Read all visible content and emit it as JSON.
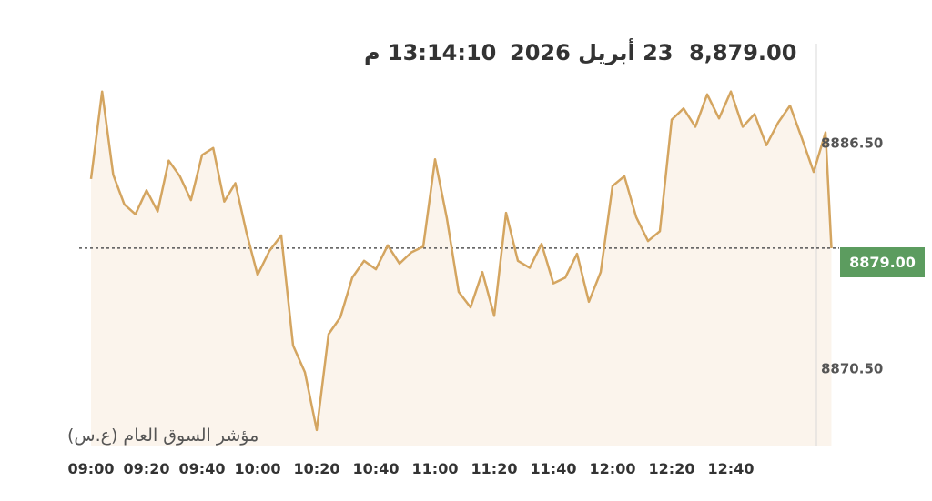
{
  "header": {
    "price": "8,879.00",
    "date": "23 أبريل 2026",
    "time": "13:14:10 م"
  },
  "index_name": "مؤشر السوق العام (ع.س)",
  "current_price_label": "8879.00",
  "colors": {
    "line": "#d4a560",
    "fill": "#fbf4ec",
    "reference": "#555555",
    "price_tag": "#5c9c5f"
  },
  "chart_data": {
    "type": "line",
    "title": "",
    "xlabel": "",
    "ylabel": "",
    "x_ticks": [
      "09:00",
      "09:20",
      "09:40",
      "10:00",
      "10:20",
      "10:40",
      "11:00",
      "11:20",
      "11:40",
      "12:00",
      "12:20",
      "12:40"
    ],
    "y_ticks": [
      8886.5,
      8870.5
    ],
    "y_tick_labels": [
      "8886.50",
      "8870.50"
    ],
    "reference_line": 8879.0,
    "ylim": [
      8865.0,
      8893.5
    ],
    "xlim": [
      "09:00",
      "13:14"
    ],
    "grid": false,
    "series": [
      {
        "x": [
          "09:00",
          "09:04",
          "09:08",
          "09:12",
          "09:16",
          "09:20",
          "09:24",
          "09:28",
          "09:32",
          "09:36",
          "09:40",
          "09:44",
          "09:48",
          "09:52",
          "09:56",
          "10:00",
          "10:04",
          "10:08",
          "10:12",
          "10:16",
          "10:20",
          "10:24",
          "10:28",
          "10:32",
          "10:36",
          "10:40",
          "10:44",
          "10:48",
          "10:52",
          "10:56",
          "11:00",
          "11:04",
          "11:08",
          "11:12",
          "11:16",
          "11:20",
          "11:24",
          "11:28",
          "11:32",
          "11:36",
          "11:40",
          "11:44",
          "11:48",
          "11:52",
          "11:56",
          "12:00",
          "12:04",
          "12:08",
          "12:12",
          "12:16",
          "12:20",
          "12:24",
          "12:28",
          "12:32",
          "12:36",
          "12:40",
          "12:44",
          "12:48",
          "12:52",
          "12:56",
          "13:00",
          "13:04",
          "13:08",
          "13:12",
          "13:14"
        ],
        "y": [
          8883.9,
          8890.1,
          8884.2,
          8882.1,
          8881.4,
          8883.1,
          8881.6,
          8885.2,
          8884.1,
          8882.4,
          8885.6,
          8886.1,
          8882.3,
          8883.6,
          8880.1,
          8877.1,
          8878.8,
          8879.9,
          8872.1,
          8870.2,
          8866.1,
          8872.9,
          8874.1,
          8876.9,
          8878.1,
          8877.5,
          8879.2,
          8877.9,
          8878.7,
          8879.1,
          8885.3,
          8881.1,
          8875.9,
          8874.8,
          8877.3,
          8874.2,
          8881.5,
          8878.1,
          8877.6,
          8879.3,
          8876.5,
          8876.9,
          8878.6,
          8875.2,
          8877.3,
          8883.4,
          8884.1,
          8881.2,
          8879.5,
          8880.2,
          8888.1,
          8888.9,
          8887.6,
          8889.9,
          8888.2,
          8890.1,
          8887.6,
          8888.5,
          8886.3,
          8887.9,
          8889.1,
          8886.8,
          8884.4,
          8887.2,
          8879.0
        ]
      }
    ]
  }
}
